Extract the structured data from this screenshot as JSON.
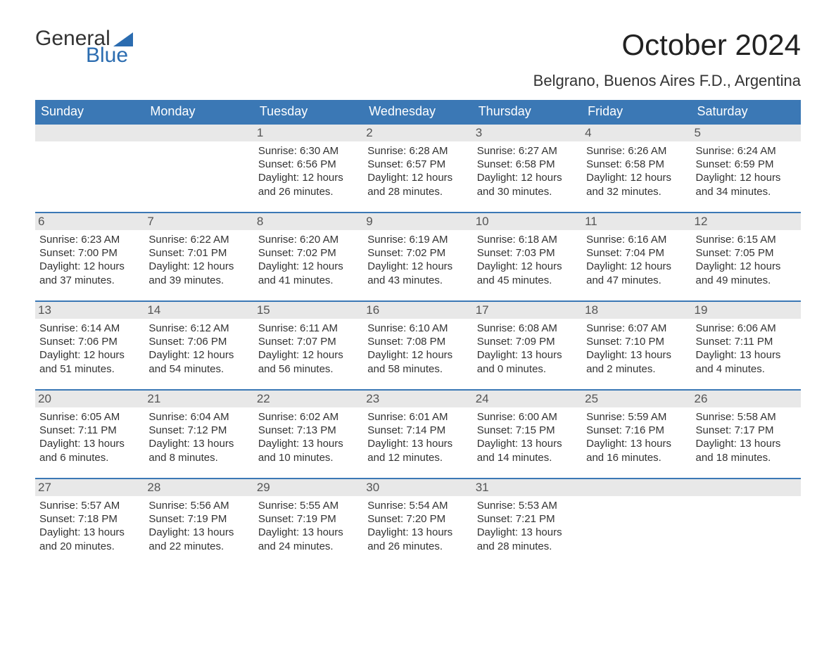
{
  "logo": {
    "word1": "General",
    "word2": "Blue",
    "flag_color": "#2b6cb0"
  },
  "title": {
    "month_year": "October 2024",
    "location": "Belgrano, Buenos Aires F.D., Argentina"
  },
  "colors": {
    "header_bg": "#3b78b5",
    "header_text": "#ffffff",
    "daynum_bg": "#e8e8e8",
    "row_border": "#3b78b5",
    "body_text": "#333333"
  },
  "fonts": {
    "title_size_pt": 32,
    "subtitle_size_pt": 17,
    "dow_size_pt": 14,
    "daynum_size_pt": 13,
    "body_size_pt": 11
  },
  "days_of_week": [
    "Sunday",
    "Monday",
    "Tuesday",
    "Wednesday",
    "Thursday",
    "Friday",
    "Saturday"
  ],
  "weeks": [
    [
      {
        "n": "",
        "sr": "",
        "ss": "",
        "dl": ""
      },
      {
        "n": "",
        "sr": "",
        "ss": "",
        "dl": ""
      },
      {
        "n": "1",
        "sr": "6:30 AM",
        "ss": "6:56 PM",
        "dl": "12 hours and 26 minutes."
      },
      {
        "n": "2",
        "sr": "6:28 AM",
        "ss": "6:57 PM",
        "dl": "12 hours and 28 minutes."
      },
      {
        "n": "3",
        "sr": "6:27 AM",
        "ss": "6:58 PM",
        "dl": "12 hours and 30 minutes."
      },
      {
        "n": "4",
        "sr": "6:26 AM",
        "ss": "6:58 PM",
        "dl": "12 hours and 32 minutes."
      },
      {
        "n": "5",
        "sr": "6:24 AM",
        "ss": "6:59 PM",
        "dl": "12 hours and 34 minutes."
      }
    ],
    [
      {
        "n": "6",
        "sr": "6:23 AM",
        "ss": "7:00 PM",
        "dl": "12 hours and 37 minutes."
      },
      {
        "n": "7",
        "sr": "6:22 AM",
        "ss": "7:01 PM",
        "dl": "12 hours and 39 minutes."
      },
      {
        "n": "8",
        "sr": "6:20 AM",
        "ss": "7:02 PM",
        "dl": "12 hours and 41 minutes."
      },
      {
        "n": "9",
        "sr": "6:19 AM",
        "ss": "7:02 PM",
        "dl": "12 hours and 43 minutes."
      },
      {
        "n": "10",
        "sr": "6:18 AM",
        "ss": "7:03 PM",
        "dl": "12 hours and 45 minutes."
      },
      {
        "n": "11",
        "sr": "6:16 AM",
        "ss": "7:04 PM",
        "dl": "12 hours and 47 minutes."
      },
      {
        "n": "12",
        "sr": "6:15 AM",
        "ss": "7:05 PM",
        "dl": "12 hours and 49 minutes."
      }
    ],
    [
      {
        "n": "13",
        "sr": "6:14 AM",
        "ss": "7:06 PM",
        "dl": "12 hours and 51 minutes."
      },
      {
        "n": "14",
        "sr": "6:12 AM",
        "ss": "7:06 PM",
        "dl": "12 hours and 54 minutes."
      },
      {
        "n": "15",
        "sr": "6:11 AM",
        "ss": "7:07 PM",
        "dl": "12 hours and 56 minutes."
      },
      {
        "n": "16",
        "sr": "6:10 AM",
        "ss": "7:08 PM",
        "dl": "12 hours and 58 minutes."
      },
      {
        "n": "17",
        "sr": "6:08 AM",
        "ss": "7:09 PM",
        "dl": "13 hours and 0 minutes."
      },
      {
        "n": "18",
        "sr": "6:07 AM",
        "ss": "7:10 PM",
        "dl": "13 hours and 2 minutes."
      },
      {
        "n": "19",
        "sr": "6:06 AM",
        "ss": "7:11 PM",
        "dl": "13 hours and 4 minutes."
      }
    ],
    [
      {
        "n": "20",
        "sr": "6:05 AM",
        "ss": "7:11 PM",
        "dl": "13 hours and 6 minutes."
      },
      {
        "n": "21",
        "sr": "6:04 AM",
        "ss": "7:12 PM",
        "dl": "13 hours and 8 minutes."
      },
      {
        "n": "22",
        "sr": "6:02 AM",
        "ss": "7:13 PM",
        "dl": "13 hours and 10 minutes."
      },
      {
        "n": "23",
        "sr": "6:01 AM",
        "ss": "7:14 PM",
        "dl": "13 hours and 12 minutes."
      },
      {
        "n": "24",
        "sr": "6:00 AM",
        "ss": "7:15 PM",
        "dl": "13 hours and 14 minutes."
      },
      {
        "n": "25",
        "sr": "5:59 AM",
        "ss": "7:16 PM",
        "dl": "13 hours and 16 minutes."
      },
      {
        "n": "26",
        "sr": "5:58 AM",
        "ss": "7:17 PM",
        "dl": "13 hours and 18 minutes."
      }
    ],
    [
      {
        "n": "27",
        "sr": "5:57 AM",
        "ss": "7:18 PM",
        "dl": "13 hours and 20 minutes."
      },
      {
        "n": "28",
        "sr": "5:56 AM",
        "ss": "7:19 PM",
        "dl": "13 hours and 22 minutes."
      },
      {
        "n": "29",
        "sr": "5:55 AM",
        "ss": "7:19 PM",
        "dl": "13 hours and 24 minutes."
      },
      {
        "n": "30",
        "sr": "5:54 AM",
        "ss": "7:20 PM",
        "dl": "13 hours and 26 minutes."
      },
      {
        "n": "31",
        "sr": "5:53 AM",
        "ss": "7:21 PM",
        "dl": "13 hours and 28 minutes."
      },
      {
        "n": "",
        "sr": "",
        "ss": "",
        "dl": ""
      },
      {
        "n": "",
        "sr": "",
        "ss": "",
        "dl": ""
      }
    ]
  ],
  "labels": {
    "sunrise": "Sunrise: ",
    "sunset": "Sunset: ",
    "daylight": "Daylight: "
  }
}
